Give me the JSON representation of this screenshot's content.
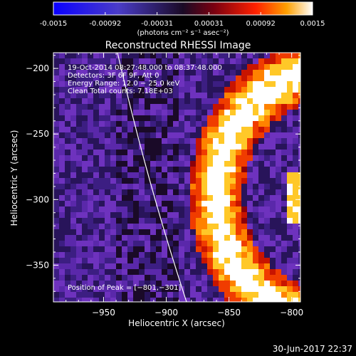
{
  "colorbar": {
    "tick_labels": [
      "-0.0015",
      "-0.00092",
      "-0.00031",
      "0.00031",
      "0.00092",
      "0.0015"
    ],
    "units_label": "(photons cm⁻² s⁻¹ asec⁻²)",
    "range": [
      -0.0015,
      0.0015
    ]
  },
  "plot": {
    "title": "Reconstructed RHESSI Image",
    "xlabel": "Heliocentric X (arcsec)",
    "ylabel": "Heliocentric Y (arcsec)",
    "xlim": [
      -990,
      -793
    ],
    "ylim": [
      -378,
      -188
    ],
    "x_ticks": [
      "−950",
      "−900",
      "−850",
      "−800"
    ],
    "x_tick_values": [
      -950,
      -900,
      -850,
      -800
    ],
    "y_ticks": [
      "−200",
      "−250",
      "−300",
      "−350"
    ],
    "y_tick_values": [
      -200,
      -250,
      -300,
      -350
    ],
    "info_lines": [
      "19-Oct-2014 08:27:48.000 to 08:37:48.000",
      "Detectors: 3F 6F 9F, Att 0",
      "Energy Range: 12.0 − 25.0 keV",
      "Clean    Total counts: 7.18E+03"
    ],
    "peak_label": "Position of Peak = [−801,−301]"
  },
  "timestamp": "30-Jun-2017 22:37"
}
